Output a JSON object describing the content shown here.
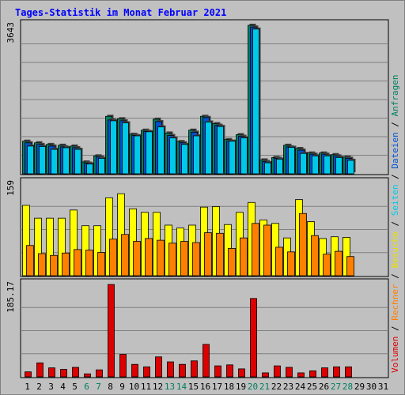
{
  "chart_data": {
    "type": "bar",
    "title": "Tages-Statistik im Monat Februar 2021",
    "categories": [
      "1",
      "2",
      "3",
      "4",
      "5",
      "6",
      "7",
      "8",
      "9",
      "10",
      "11",
      "12",
      "13",
      "14",
      "15",
      "16",
      "17",
      "18",
      "19",
      "20",
      "21",
      "22",
      "23",
      "24",
      "25",
      "26",
      "27",
      "28",
      "29",
      "30",
      "31"
    ],
    "weekend_days": [
      "6",
      "7",
      "13",
      "14",
      "20",
      "21",
      "27",
      "28"
    ],
    "right_legend": [
      {
        "text": "Volumen",
        "color": "#dd0000"
      },
      {
        "text": " / ",
        "color": "#000000"
      },
      {
        "text": "Rechner",
        "color": "#ff8000"
      },
      {
        "text": " / ",
        "color": "#000000"
      },
      {
        "text": "Besuche",
        "color": "#e8e000"
      },
      {
        "text": " / ",
        "color": "#000000"
      },
      {
        "text": "Seiten",
        "color": "#00c8e8"
      },
      {
        "text": " / ",
        "color": "#000000"
      },
      {
        "text": "Dateien",
        "color": "#0050d0"
      },
      {
        "text": " / ",
        "color": "#000000"
      },
      {
        "text": "Anfragen",
        "color": "#008060"
      }
    ],
    "panels": [
      {
        "id": "top",
        "ymax": 3643,
        "ymax_label": "3643",
        "series": [
          {
            "name": "Anfragen",
            "color": "#008060",
            "values": [
              800,
              760,
              720,
              700,
              680,
              290,
              440,
              1410,
              1350,
              970,
              1070,
              1340,
              1000,
              790,
              1070,
              1410,
              1230,
              840,
              960,
              3643,
              340,
              400,
              700,
              620,
              510,
              510,
              470,
              410,
              null,
              null,
              null
            ]
          },
          {
            "name": "Dateien",
            "color": "#0050d0",
            "values": [
              760,
              720,
              680,
              660,
              640,
              260,
              410,
              1320,
              1300,
              940,
              1040,
              1280,
              940,
              760,
              1020,
              1380,
              1190,
              800,
              920,
              3600,
              300,
              380,
              660,
              580,
              480,
              480,
              440,
              380,
              null,
              null,
              null
            ]
          },
          {
            "name": "Seiten",
            "color": "#00c8e8",
            "values": [
              680,
              670,
              600,
              640,
              600,
              240,
              380,
              1300,
              1250,
              930,
              1030,
              1150,
              880,
              720,
              930,
              1270,
              1160,
              800,
              880,
              3550,
              270,
              360,
              650,
              500,
              440,
              440,
              400,
              330,
              null,
              null,
              null
            ]
          }
        ]
      },
      {
        "id": "middle",
        "ymax": 159,
        "ymax_label": "159",
        "series": [
          {
            "name": "Besuche",
            "color": "#ffff00",
            "values": [
              121,
              99,
              99,
              99,
              113,
              86,
              86,
              134,
              141,
              115,
              109,
              109,
              87,
              82,
              87,
              118,
              119,
              88,
              109,
              126,
              96,
              90,
              65,
              131,
              93,
              64,
              67,
              66,
              null,
              null,
              null
            ]
          },
          {
            "name": "Rechner",
            "color": "#ff8000",
            "values": [
              52,
              38,
              35,
              39,
              45,
              44,
              40,
              63,
              71,
              59,
              64,
              61,
              56,
              59,
              57,
              74,
              73,
              47,
              65,
              90,
              87,
              49,
              41,
              107,
              69,
              37,
              42,
              33,
              null,
              null,
              null
            ]
          }
        ]
      },
      {
        "id": "bottom",
        "ymax": 185.17,
        "ymax_label": "185.17",
        "series": [
          {
            "name": "Volumen",
            "color": "#dd0000",
            "values": [
              10,
              28,
              18,
              15,
              19,
              6,
              14,
              185,
              45,
              25,
              20,
              40,
              30,
              25,
              32,
              65,
              22,
              24,
              16,
              157,
              8,
              22,
              19,
              8,
              12,
              18,
              20,
              20,
              null,
              null,
              null
            ]
          }
        ]
      }
    ]
  }
}
